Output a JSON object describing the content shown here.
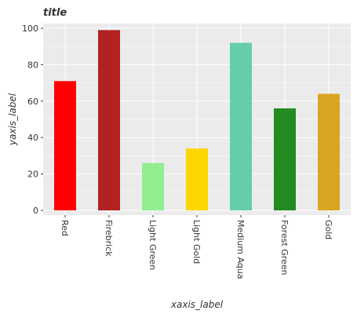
{
  "chart_data": {
    "type": "bar",
    "title": "title",
    "xlabel": "xaxis_label",
    "ylabel": "yaxis_label",
    "categories": [
      "Red",
      "Firebrick",
      "Light Green",
      "Light Gold",
      "Medium Aqua",
      "Forest Green",
      "Gold"
    ],
    "values": [
      71,
      99,
      26,
      34,
      92,
      56,
      64
    ],
    "colors": [
      "#ff0000",
      "#b22222",
      "#90ee90",
      "#ffd700",
      "#66cdaa",
      "#228b22",
      "#daa520"
    ],
    "ylim": [
      0,
      100
    ],
    "yticks": [
      0,
      20,
      40,
      60,
      80,
      100
    ],
    "grid": true,
    "background": "#ebebeb",
    "gridline_color": "#ffffff"
  }
}
